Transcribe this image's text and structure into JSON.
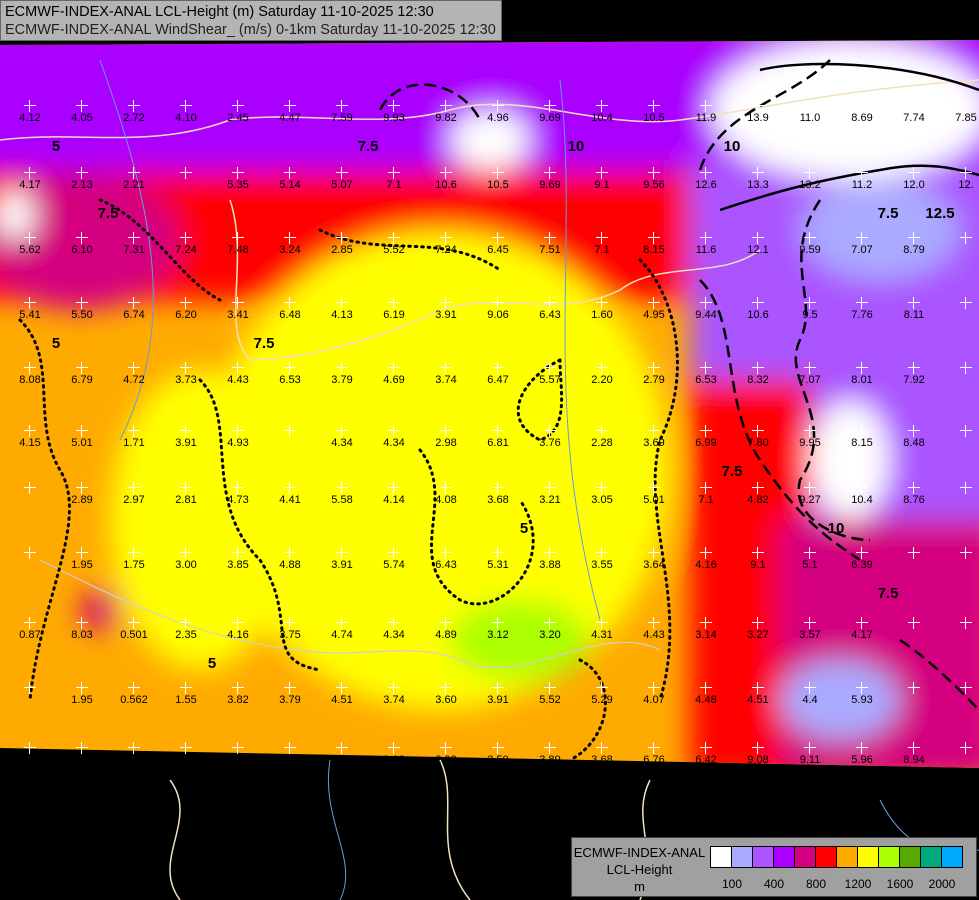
{
  "header": {
    "line1": "ECMWF-INDEX-ANAL LCL-Height (m) Saturday 11-10-2025 12:30",
    "line2": "ECMWF-INDEX-ANAL WindShear_ (m/s) 0-1km Saturday 11-10-2025 12:30"
  },
  "legend": {
    "title_lines": [
      "ECMWF-INDEX-ANAL",
      "LCL-Height",
      "m"
    ],
    "colors": [
      "#ffffff",
      "#aaaaff",
      "#aa55ff",
      "#aa00ff",
      "#d4007f",
      "#ff0000",
      "#ffaa00",
      "#ffff00",
      "#aaff00",
      "#55aa00",
      "#00aa7f",
      "#00aaff"
    ],
    "ticks": [
      "100",
      "400",
      "800",
      "1200",
      "1600",
      "2000"
    ]
  },
  "contour_labels": [
    "5",
    "7.5",
    "10",
    "12.5"
  ],
  "value_rows": [
    [
      "4.12",
      "4.05",
      "2.72",
      "4.10",
      "2.45",
      "4.47",
      "7.59",
      "9.93",
      "9.82",
      "4.96",
      "9.69",
      "10.4",
      "10.5",
      "11.9",
      "13.9",
      "11.0",
      "8.69",
      "7.74",
      "7.85"
    ],
    [
      "4.17",
      "2.13",
      "2.21",
      "",
      "5.35",
      "5.14",
      "5.07",
      "7.1",
      "10.6",
      "10.5",
      "9.69",
      "9.1",
      "9.56",
      "12.6",
      "13.3",
      "13.2",
      "11.2",
      "12.0",
      "12."
    ],
    [
      "5.62",
      "6.10",
      "7.31",
      "7.24",
      "7.48",
      "3.24",
      "2.85",
      "5.52",
      "7.24",
      "6.45",
      "7.51",
      "7.1",
      "8.15",
      "11.6",
      "12.1",
      "9.59",
      "7.07",
      "8.79",
      ""
    ],
    [
      "5.41",
      "5.50",
      "6.74",
      "6.20",
      "3.41",
      "6.48",
      "4.13",
      "6.19",
      "3.91",
      "9.06",
      "6.43",
      "1.60",
      "4.95",
      "9.44",
      "10.6",
      "9.5",
      "7.76",
      "8.11",
      ""
    ],
    [
      "8.08",
      "6.79",
      "4.72",
      "3.73",
      "4.43",
      "6.53",
      "3.79",
      "4.69",
      "3.74",
      "6.47",
      "5.57",
      "2.20",
      "2.79",
      "6.53",
      "8.32",
      "7.07",
      "8.01",
      "7.92",
      ""
    ],
    [
      "4.15",
      "5.01",
      "1.71",
      "3.91",
      "4.93",
      "",
      "4.34",
      "4.34",
      "2.98",
      "6.81",
      "3.76",
      "2.28",
      "3.69",
      "6.99",
      "7.80",
      "9.95",
      "8.15",
      "8.48",
      ""
    ],
    [
      "",
      "2.89",
      "2.97",
      "2.81",
      "4.73",
      "4.41",
      "5.58",
      "4.14",
      "4.08",
      "3.68",
      "3.21",
      "3.05",
      "5.01",
      "7.1",
      "4.82",
      "9.27",
      "10.4",
      "8.76",
      ""
    ],
    [
      "",
      "1.95",
      "1.75",
      "3.00",
      "3.85",
      "4.88",
      "3.91",
      "5.74",
      "6.43",
      "5.31",
      "3.88",
      "3.55",
      "3.64",
      "4.16",
      "9.1",
      "5.1",
      "6.39",
      "",
      ""
    ],
    [
      "0.87",
      "8.03",
      "0.501",
      "2.35",
      "4.16",
      "3.75",
      "4.74",
      "4.34",
      "4.89",
      "3.12",
      "3.20",
      "4.31",
      "4.43",
      "3.14",
      "3.27",
      "3.57",
      "4.17",
      "",
      ""
    ],
    [
      "",
      "1.95",
      "0.562",
      "1.55",
      "3.82",
      "3.79",
      "4.51",
      "3.74",
      "3.60",
      "3.91",
      "5.52",
      "5.29",
      "4.07",
      "4.48",
      "4.51",
      "4.4",
      "5.93",
      "",
      ""
    ],
    [
      "",
      "1.40",
      "1.03",
      "1.01",
      "2.31",
      "1.89",
      "3.11",
      "3.02",
      "2.93",
      "3.59",
      "3.89",
      "3.68",
      "6.76",
      "6.42",
      "9.08",
      "9.11",
      "5.96",
      "8.94",
      ""
    ]
  ]
}
